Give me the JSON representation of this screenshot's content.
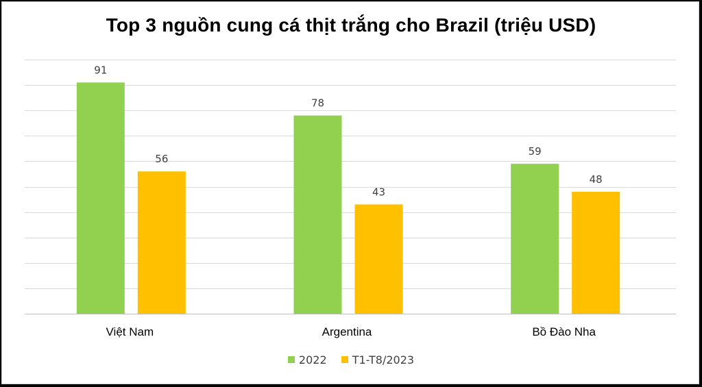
{
  "chart_data": {
    "type": "bar",
    "title": "Top 3 nguồn cung cá thịt trắng cho Brazil (triệu USD)",
    "categories": [
      "Việt Nam",
      "Argentina",
      "Bồ Đào Nha"
    ],
    "series": [
      {
        "name": "2022",
        "values": [
          91,
          78,
          59
        ],
        "color": "#92d050"
      },
      {
        "name": "T1-T8/2023",
        "values": [
          56,
          43,
          48
        ],
        "color": "#ffc000"
      }
    ],
    "xlabel": "",
    "ylabel": "",
    "ylim": [
      0,
      100
    ],
    "grid": true,
    "legend": "bottom"
  }
}
